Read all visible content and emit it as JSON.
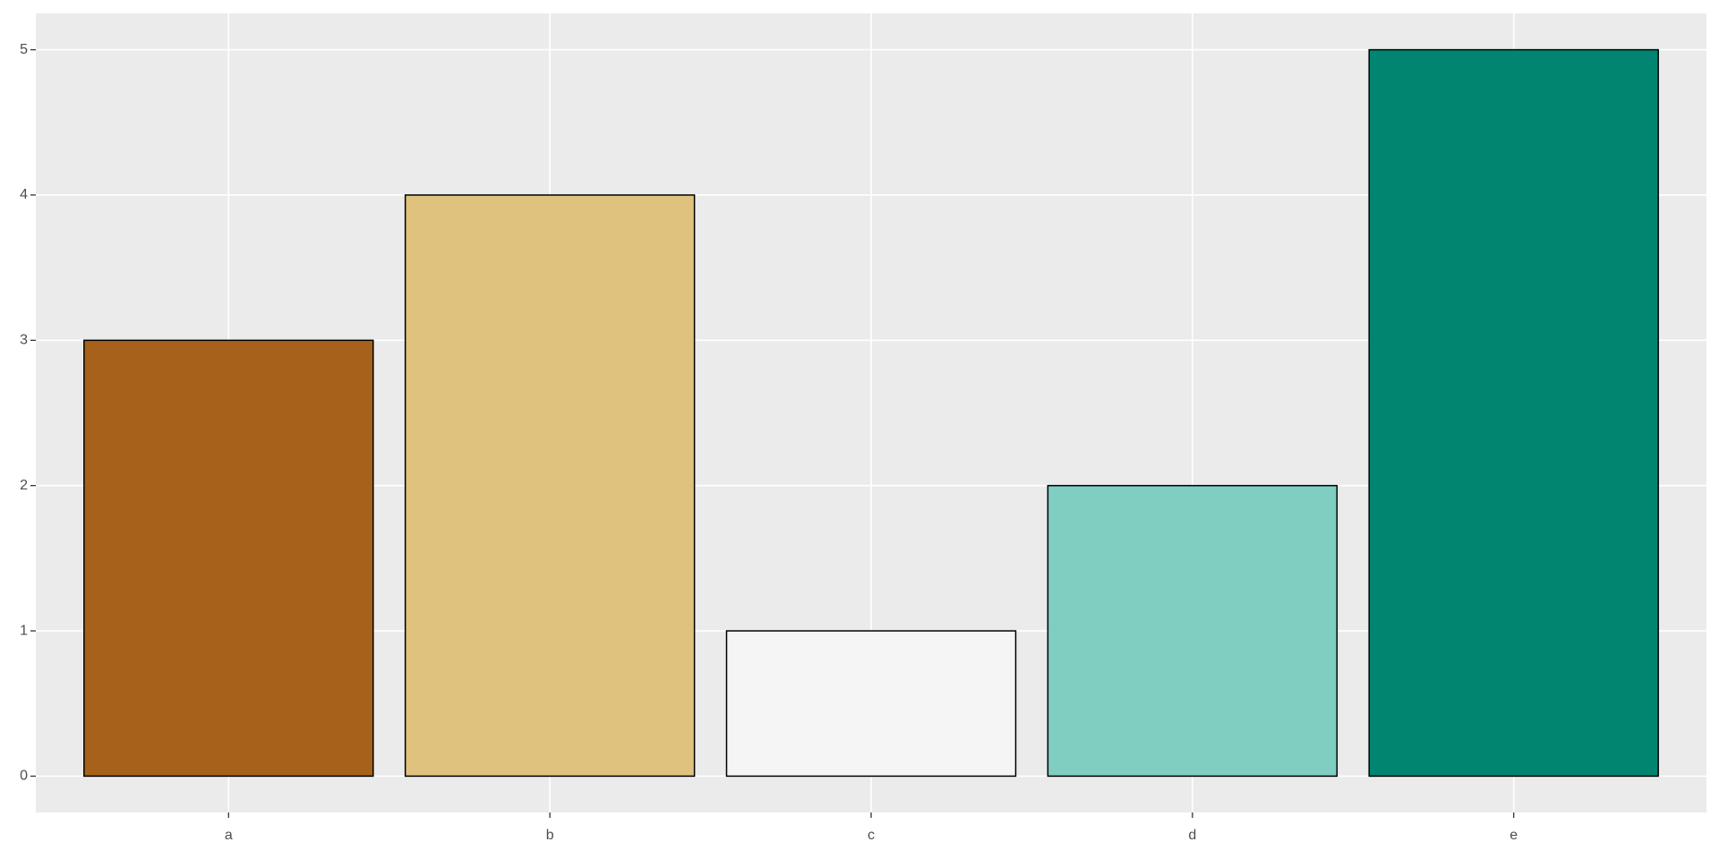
{
  "chart_data": {
    "type": "bar",
    "categories": [
      "a",
      "b",
      "c",
      "d",
      "e"
    ],
    "values": [
      3,
      4,
      1,
      2,
      5
    ],
    "colors": [
      "#a6611a",
      "#dfc27d",
      "#f5f5f5",
      "#80cdc1",
      "#018571"
    ],
    "ylim": [
      -0.25,
      5.25
    ],
    "yticks": [
      0,
      1,
      2,
      3,
      4,
      5
    ],
    "grid": true
  }
}
